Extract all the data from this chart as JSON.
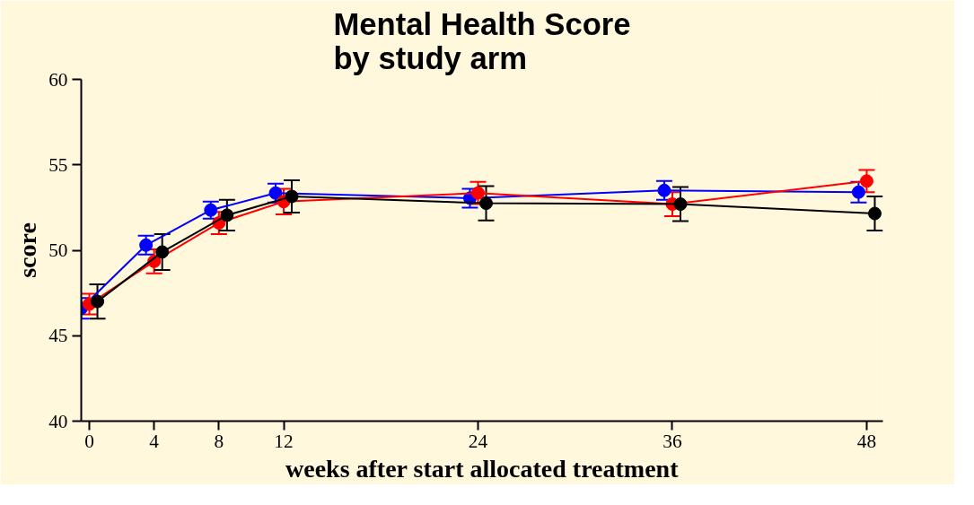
{
  "chart_data": {
    "type": "line",
    "title": "Mental Health Score\nby study arm",
    "xlabel": "weeks after start allocated treatment",
    "ylabel": "score",
    "xlim": [
      -0.5,
      49
    ],
    "ylim": [
      40,
      60
    ],
    "xticks": [
      0,
      4,
      8,
      12,
      24,
      36,
      48
    ],
    "yticks": [
      40,
      45,
      50,
      55,
      60
    ],
    "grid": false,
    "marker": "circle",
    "line_style": "solid",
    "series": [
      {
        "color": "#0000ff",
        "x": [
          -0.5,
          3.5,
          7.5,
          11.5,
          23.5,
          35.5,
          47.5
        ],
        "values": [
          46.6,
          50.3,
          52.35,
          53.35,
          53.05,
          53.5,
          53.4
        ],
        "errors": [
          0.6,
          0.55,
          0.5,
          0.55,
          0.55,
          0.55,
          0.6
        ]
      },
      {
        "color": "#ff0000",
        "x": [
          0,
          4,
          8,
          12,
          24,
          36,
          48
        ],
        "values": [
          46.85,
          49.35,
          51.6,
          52.85,
          53.35,
          52.7,
          54.05
        ],
        "errors": [
          0.6,
          0.7,
          0.65,
          0.75,
          0.65,
          0.7,
          0.65
        ]
      },
      {
        "color": "#000000",
        "x": [
          0.5,
          4.5,
          8.5,
          12.5,
          24.5,
          36.5,
          48.5
        ],
        "values": [
          47.0,
          49.9,
          52.05,
          53.15,
          52.75,
          52.7,
          52.15
        ],
        "errors": [
          1.0,
          1.05,
          0.9,
          0.95,
          1.0,
          1.0,
          1.0
        ]
      }
    ]
  }
}
